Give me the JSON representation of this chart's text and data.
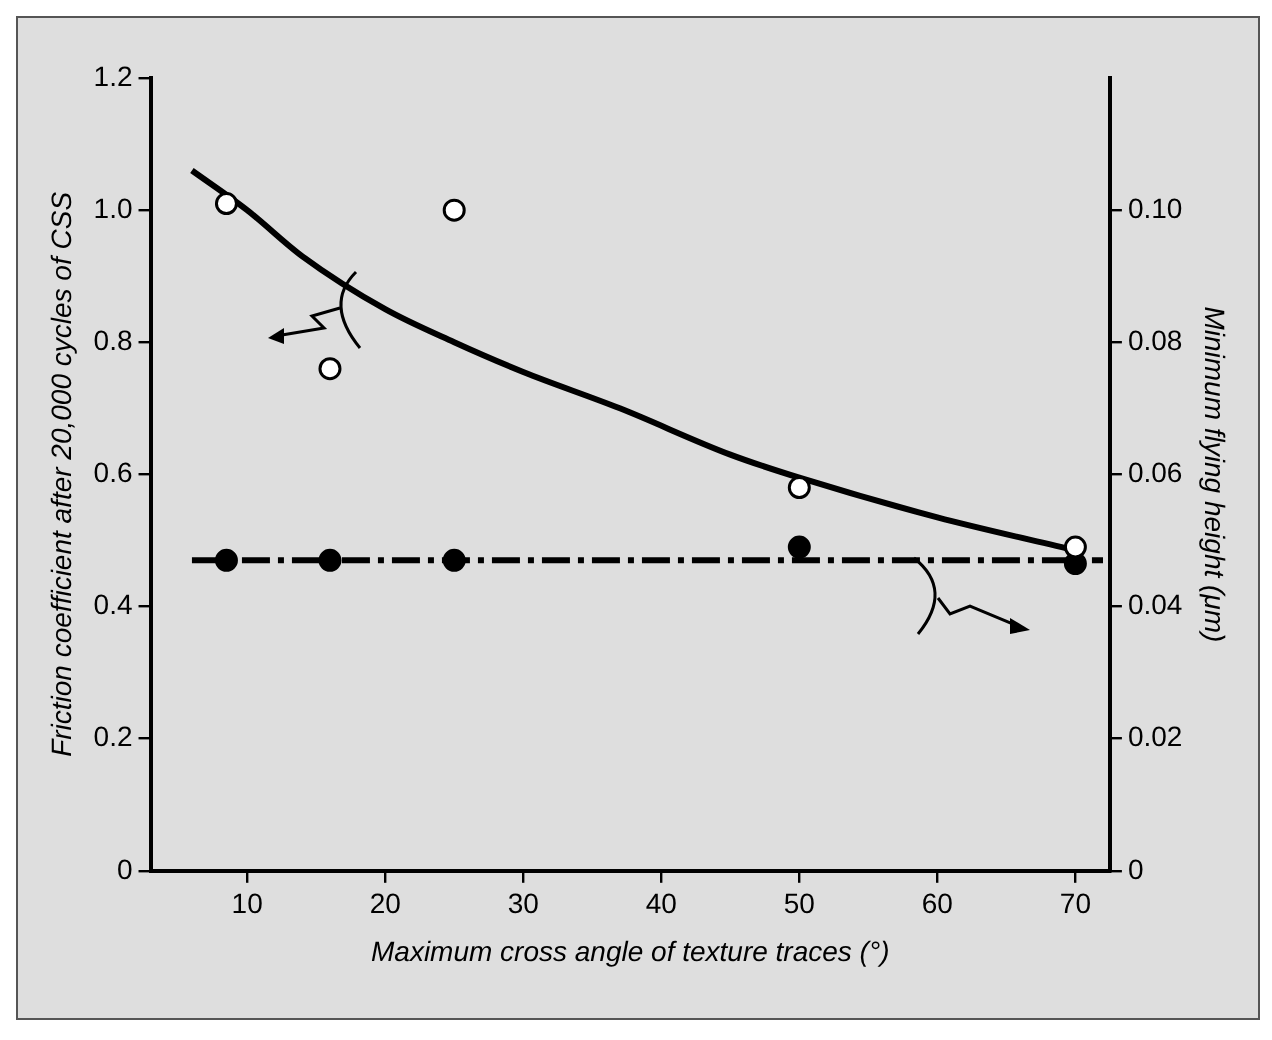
{
  "chart_data": {
    "type": "scatter",
    "xlabel": "Maximum cross angle of texture traces (°)",
    "ylabel": "Friction coefficient after 20,000 cycles of CSS",
    "y2label": "Minimum flying height (μm)",
    "xlim": [
      3,
      72.5
    ],
    "xticks": [
      10,
      20,
      30,
      40,
      50,
      60,
      70
    ],
    "ylim": [
      0,
      1.2
    ],
    "yticks": [
      0,
      0.2,
      0.4,
      0.6,
      0.8,
      {
        "value": 1,
        "label": "1.0"
      },
      1.2
    ],
    "y2lim": [
      0,
      0.12
    ],
    "y2ticks": [
      0,
      0.02,
      0.04,
      0.06,
      0.08,
      {
        "value": 0.1,
        "label": "0.10"
      }
    ],
    "grid": false,
    "legend": false,
    "series": [
      {
        "type": "scatter",
        "axis": "y",
        "marker": "circle",
        "color": "#ffffff",
        "x": [
          8.5,
          16,
          25,
          50,
          70
        ],
        "values": [
          1.01,
          0.76,
          1.0,
          0.58,
          0.49
        ]
      },
      {
        "type": "line",
        "axis": "y",
        "marker": "none",
        "line_style": "solid",
        "color": "#000000",
        "x": [
          6,
          10,
          14,
          20,
          25,
          30,
          37,
          45,
          50,
          60,
          70
        ],
        "values": [
          1.06,
          1.0,
          0.93,
          0.85,
          0.8,
          0.755,
          0.7,
          0.63,
          0.595,
          0.535,
          0.485
        ]
      },
      {
        "type": "scatter",
        "axis": "y2",
        "marker": "circle",
        "color": "#000000",
        "x": [
          8.5,
          16,
          25,
          50,
          70
        ],
        "values": [
          0.047,
          0.047,
          0.047,
          0.049,
          0.0465
        ]
      },
      {
        "type": "line",
        "axis": "y2",
        "marker": "none",
        "line_style": "dashed",
        "color": "#000000",
        "x": [
          6,
          72
        ],
        "values": [
          0.047,
          0.047
        ]
      }
    ]
  }
}
